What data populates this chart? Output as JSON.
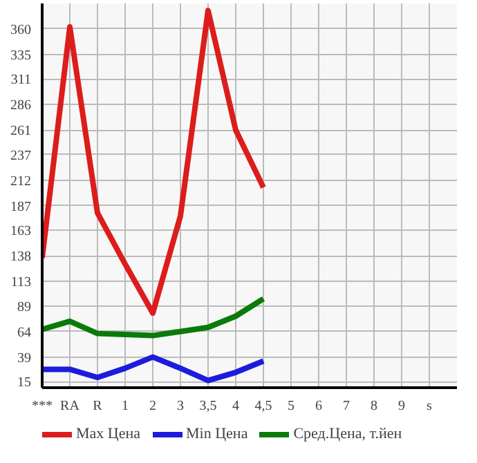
{
  "chart_data": {
    "type": "line",
    "categories": [
      "***",
      "RA",
      "R",
      "1",
      "2",
      "3",
      "3,5",
      "4",
      "4,5",
      "5",
      "6",
      "7",
      "8",
      "9",
      "s"
    ],
    "series": [
      {
        "name": "Max Цена",
        "color": "#dd1c1c",
        "values": [
          136,
          362,
          180,
          130,
          82,
          177,
          378,
          261,
          205,
          null,
          null,
          null,
          null,
          null,
          null
        ]
      },
      {
        "name": "Min Цена",
        "color": "#1c1cdd",
        "values": [
          27,
          27,
          19,
          28,
          39,
          28,
          16,
          24,
          35,
          null,
          null,
          null,
          null,
          null,
          null
        ]
      },
      {
        "name": "Сред.Цена, т.йен",
        "color": "#0a7a0a",
        "values": [
          66,
          74,
          62,
          61,
          60,
          64,
          68,
          79,
          96,
          null,
          null,
          null,
          null,
          null,
          null
        ]
      }
    ],
    "ylim": [
      9,
      385
    ],
    "yticks": [
      15,
      39,
      64,
      89,
      113,
      138,
      163,
      187,
      212,
      237,
      261,
      286,
      311,
      335,
      360
    ],
    "grid": true,
    "legend": "bottom",
    "marker": "none",
    "line_style": "solid"
  }
}
